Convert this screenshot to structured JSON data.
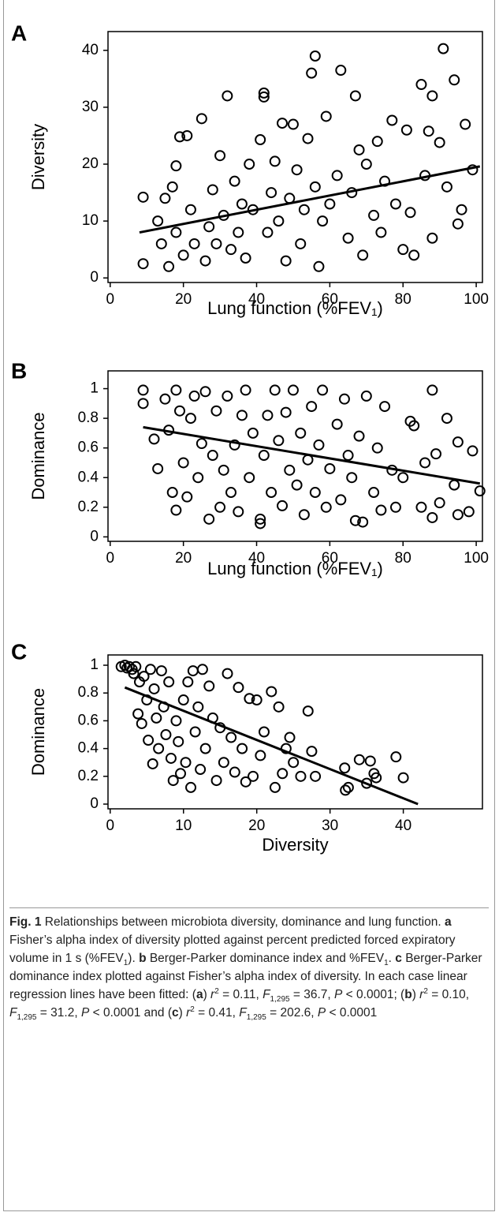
{
  "chart_data": [
    {
      "type": "scatter",
      "panel": "A",
      "xlabel": "Lung function (%FEV₁)",
      "ylabel": "Diversity",
      "xlim": [
        -0.6,
        101.7
      ],
      "ylim": [
        -0.8,
        43.3
      ],
      "xticks": [
        0,
        20,
        40,
        60,
        80,
        100
      ],
      "yticks": [
        0,
        10,
        20,
        30,
        40
      ],
      "color": "#000000",
      "x": [
        9,
        9,
        13,
        14,
        15,
        16,
        17,
        18,
        18,
        19,
        20,
        21,
        22,
        23,
        25,
        26,
        27,
        28,
        29,
        30,
        31,
        32,
        33,
        34,
        35,
        36,
        37,
        38,
        39,
        41,
        42,
        42,
        43,
        44,
        45,
        46,
        47,
        48,
        49,
        50,
        51,
        52,
        53,
        54,
        55,
        56,
        56,
        57,
        58,
        59,
        60,
        62,
        63,
        65,
        66,
        67,
        68,
        69,
        70,
        72,
        73,
        74,
        75,
        77,
        78,
        80,
        81,
        82,
        83,
        85,
        86,
        87,
        88,
        88,
        90,
        91,
        92,
        94,
        95,
        96,
        97,
        99
      ],
      "y": [
        14.2,
        2.5,
        10,
        6,
        14,
        2,
        16,
        19.7,
        8,
        24.8,
        4,
        25,
        12,
        6,
        28,
        3,
        9,
        15.5,
        6,
        21.5,
        11,
        32,
        5,
        17,
        8,
        13,
        3.5,
        20,
        12,
        24.3,
        32.5,
        31.8,
        8,
        15,
        20.5,
        10,
        27.2,
        3,
        14,
        27,
        19,
        6,
        12,
        24.5,
        36,
        39,
        16,
        2,
        10,
        28.4,
        13,
        18,
        36.5,
        7,
        15,
        32,
        22.5,
        4,
        20,
        11,
        24,
        8,
        17,
        27.7,
        13,
        5,
        26,
        11.5,
        4,
        34,
        18,
        25.8,
        32,
        7,
        23.8,
        40.3,
        16,
        34.8,
        9.5,
        12,
        27,
        19
      ],
      "trend_line": {
        "x": [
          8,
          101
        ],
        "y": [
          8,
          19.6
        ]
      }
    },
    {
      "type": "scatter",
      "panel": "B",
      "xlabel": "Lung function (%FEV₁)",
      "ylabel": "Dominance",
      "xlim": [
        -0.6,
        101.7
      ],
      "ylim": [
        -0.03,
        1.12
      ],
      "xticks": [
        0,
        20,
        40,
        60,
        80,
        100
      ],
      "yticks": [
        0,
        0.2,
        0.4,
        0.6,
        0.8,
        1
      ],
      "color": "#000000",
      "x": [
        9,
        9,
        12,
        13,
        15,
        16,
        17,
        18,
        18,
        19,
        20,
        21,
        22,
        23,
        24,
        25,
        26,
        27,
        28,
        29,
        30,
        31,
        32,
        33,
        34,
        35,
        36,
        37,
        38,
        39,
        41,
        41,
        42,
        43,
        44,
        45,
        46,
        47,
        48,
        49,
        50,
        51,
        52,
        53,
        54,
        55,
        56,
        57,
        58,
        59,
        60,
        62,
        63,
        64,
        65,
        66,
        67,
        68,
        69,
        70,
        72,
        73,
        74,
        75,
        77,
        78,
        80,
        82,
        83,
        85,
        86,
        88,
        88,
        89,
        90,
        92,
        94,
        95,
        95,
        98,
        99,
        101
      ],
      "y": [
        0.99,
        0.9,
        0.66,
        0.46,
        0.93,
        0.72,
        0.3,
        0.18,
        0.99,
        0.85,
        0.5,
        0.27,
        0.8,
        0.95,
        0.4,
        0.63,
        0.98,
        0.12,
        0.55,
        0.85,
        0.2,
        0.45,
        0.95,
        0.3,
        0.62,
        0.17,
        0.82,
        0.99,
        0.4,
        0.7,
        0.09,
        0.12,
        0.55,
        0.82,
        0.3,
        0.99,
        0.65,
        0.21,
        0.84,
        0.45,
        0.99,
        0.35,
        0.7,
        0.15,
        0.52,
        0.88,
        0.3,
        0.62,
        0.99,
        0.2,
        0.46,
        0.76,
        0.25,
        0.93,
        0.55,
        0.4,
        0.11,
        0.68,
        0.1,
        0.95,
        0.3,
        0.6,
        0.18,
        0.88,
        0.45,
        0.2,
        0.4,
        0.78,
        0.75,
        0.2,
        0.5,
        0.99,
        0.13,
        0.56,
        0.23,
        0.8,
        0.35,
        0.64,
        0.15,
        0.17,
        0.58,
        0.31
      ],
      "trend_line": {
        "x": [
          9,
          101
        ],
        "y": [
          0.74,
          0.36
        ]
      }
    },
    {
      "type": "scatter",
      "panel": "C",
      "xlabel": "Diversity",
      "ylabel": "Dominance",
      "xlim": [
        -0.3,
        50.8
      ],
      "ylim": [
        -0.034,
        1.074
      ],
      "xticks": [
        0,
        10,
        20,
        30,
        40
      ],
      "yticks": [
        0,
        0.2,
        0.4,
        0.6,
        0.8,
        1
      ],
      "color": "#000000",
      "x": [
        1.5,
        2,
        2.3,
        2.6,
        3,
        3.2,
        3.5,
        3.8,
        4,
        4.3,
        4.6,
        5,
        5.2,
        5.5,
        5.8,
        6,
        6.3,
        6.6,
        7,
        7.3,
        7.6,
        8,
        8.3,
        8.6,
        9,
        9.3,
        9.6,
        10,
        10.3,
        10.6,
        11,
        11.3,
        11.6,
        12,
        12.3,
        12.6,
        13,
        13.5,
        14,
        14.5,
        15,
        15.5,
        16,
        16.5,
        17,
        17.5,
        18,
        18.5,
        19,
        19.5,
        20,
        20.5,
        21,
        22,
        22.5,
        23,
        23.5,
        24,
        24.5,
        25,
        26,
        27,
        27.5,
        28,
        32,
        32.1,
        32.5,
        34,
        35,
        35.5,
        36,
        36.3,
        39,
        40
      ],
      "y": [
        0.99,
        1,
        0.98,
        0.99,
        0.97,
        0.94,
        0.99,
        0.65,
        0.88,
        0.58,
        0.92,
        0.75,
        0.46,
        0.97,
        0.29,
        0.83,
        0.62,
        0.4,
        0.96,
        0.7,
        0.5,
        0.88,
        0.33,
        0.17,
        0.6,
        0.45,
        0.22,
        0.75,
        0.3,
        0.88,
        0.12,
        0.96,
        0.52,
        0.7,
        0.25,
        0.97,
        0.4,
        0.85,
        0.62,
        0.17,
        0.55,
        0.3,
        0.94,
        0.48,
        0.23,
        0.84,
        0.4,
        0.16,
        0.76,
        0.2,
        0.75,
        0.35,
        0.52,
        0.81,
        0.12,
        0.7,
        0.22,
        0.4,
        0.48,
        0.3,
        0.2,
        0.67,
        0.38,
        0.2,
        0.26,
        0.1,
        0.12,
        0.32,
        0.15,
        0.31,
        0.22,
        0.19,
        0.34,
        0.19
      ],
      "trend_line": {
        "x": [
          2,
          42
        ],
        "y": [
          0.84,
          0
        ]
      }
    }
  ],
  "caption": {
    "runs": [
      {
        "text": "Fig. 1",
        "style": "bold"
      },
      {
        "text": " Relationships between microbiota diversity, dominance and lung function. ",
        "style": "plain"
      },
      {
        "text": "a",
        "style": "bold"
      },
      {
        "text": " Fisher’s alpha index of diversity plotted against percent predicted forced expiratory volume in 1 s (%FEV",
        "style": "plain"
      },
      {
        "text": "1",
        "style": "sub"
      },
      {
        "text": "). ",
        "style": "plain"
      },
      {
        "text": "b",
        "style": "bold"
      },
      {
        "text": " Berger-Parker dominance index and %FEV",
        "style": "plain"
      },
      {
        "text": "1",
        "style": "sub"
      },
      {
        "text": ". ",
        "style": "plain"
      },
      {
        "text": "c",
        "style": "bold"
      },
      {
        "text": " Berger-Parker dominance index plotted against Fisher’s alpha index of diversity. In each case linear regression lines have been fitted: (",
        "style": "plain"
      },
      {
        "text": "a",
        "style": "bold"
      },
      {
        "text": ") ",
        "style": "plain"
      },
      {
        "text": "r",
        "style": "italic"
      },
      {
        "text": "2",
        "style": "sup"
      },
      {
        "text": " = 0.11, ",
        "style": "plain"
      },
      {
        "text": "F",
        "style": "italic"
      },
      {
        "text": "1,295",
        "style": "sub"
      },
      {
        "text": " = 36.7, ",
        "style": "plain"
      },
      {
        "text": "P",
        "style": "italic"
      },
      {
        "text": " < 0.0001; (",
        "style": "plain"
      },
      {
        "text": "b",
        "style": "bold"
      },
      {
        "text": ") ",
        "style": "plain"
      },
      {
        "text": "r",
        "style": "italic"
      },
      {
        "text": "2",
        "style": "sup"
      },
      {
        "text": " = 0.10, ",
        "style": "plain"
      },
      {
        "text": "F",
        "style": "italic"
      },
      {
        "text": "1,295",
        "style": "sub"
      },
      {
        "text": " = 31.2, ",
        "style": "plain"
      },
      {
        "text": "P",
        "style": "italic"
      },
      {
        "text": " < 0.0001 and (",
        "style": "plain"
      },
      {
        "text": "c",
        "style": "bold"
      },
      {
        "text": ") ",
        "style": "plain"
      },
      {
        "text": "r",
        "style": "italic"
      },
      {
        "text": "2",
        "style": "sup"
      },
      {
        "text": " = 0.41, ",
        "style": "plain"
      },
      {
        "text": "F",
        "style": "italic"
      },
      {
        "text": "1,295",
        "style": "sub"
      },
      {
        "text": " = 202.6, ",
        "style": "plain"
      },
      {
        "text": "P",
        "style": "italic"
      },
      {
        "text": " < 0.0001",
        "style": "plain"
      }
    ]
  }
}
